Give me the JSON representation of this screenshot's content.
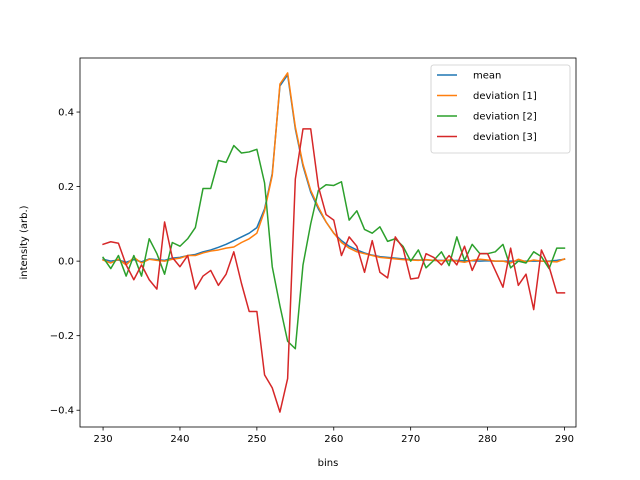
{
  "chart_data": {
    "type": "line",
    "title": "",
    "xlabel": "bins",
    "ylabel": "intensity (arb.)",
    "xlim": [
      227,
      291.5
    ],
    "ylim": [
      -0.445,
      0.545
    ],
    "xticks": [
      230,
      240,
      250,
      260,
      270,
      280,
      290
    ],
    "yticks": [
      -0.4,
      -0.2,
      0.0,
      0.2,
      0.4
    ],
    "xtick_labels": [
      "230",
      "240",
      "250",
      "260",
      "270",
      "280",
      "290"
    ],
    "ytick_labels": [
      "−0.4",
      "−0.2",
      "0.0",
      "0.2",
      "0.4"
    ],
    "grid": false,
    "legend_position": "top-right",
    "x_start": 230,
    "series": [
      {
        "name": "mean",
        "color": "#1f77b4",
        "values": [
          0.005,
          0.0,
          0.003,
          -0.003,
          0.004,
          -0.002,
          0.006,
          0.004,
          0.002,
          0.008,
          0.01,
          0.015,
          0.018,
          0.025,
          0.03,
          0.037,
          0.045,
          0.055,
          0.065,
          0.075,
          0.09,
          0.14,
          0.235,
          0.47,
          0.5,
          0.355,
          0.255,
          0.185,
          0.14,
          0.105,
          0.075,
          0.055,
          0.04,
          0.03,
          0.022,
          0.016,
          0.012,
          0.01,
          0.008,
          0.006,
          0.004,
          0.003,
          0.003,
          0.002,
          0.002,
          0.001,
          0.002,
          0.001,
          0.001,
          0.0,
          0.001,
          0.0,
          0.0,
          0.0,
          0.0,
          0.0,
          0.0,
          0.0,
          0.0,
          0.002,
          0.005
        ]
      },
      {
        "name": "deviation [1]",
        "color": "#ff7f0e",
        "values": [
          0.003,
          -0.005,
          0.005,
          -0.01,
          0.01,
          -0.005,
          0.005,
          0.002,
          0.0,
          0.005,
          0.008,
          0.015,
          0.015,
          0.022,
          0.027,
          0.03,
          0.035,
          0.038,
          0.05,
          0.06,
          0.075,
          0.135,
          0.23,
          0.475,
          0.505,
          0.36,
          0.26,
          0.19,
          0.145,
          0.105,
          0.075,
          0.05,
          0.035,
          0.025,
          0.02,
          0.015,
          0.01,
          0.008,
          0.006,
          0.004,
          0.003,
          0.002,
          0.004,
          0.002,
          0.001,
          0.003,
          0.0,
          -0.003,
          0.002,
          0.005,
          0.003,
          0.0,
          0.0,
          -0.005,
          0.005,
          -0.002,
          0.003,
          0.0,
          -0.001,
          -0.002,
          0.006
        ]
      },
      {
        "name": "deviation [2]",
        "color": "#2ca02c",
        "values": [
          0.01,
          -0.02,
          0.015,
          -0.04,
          0.015,
          -0.04,
          0.06,
          0.02,
          -0.035,
          0.05,
          0.04,
          0.06,
          0.09,
          0.195,
          0.195,
          0.27,
          0.265,
          0.31,
          0.29,
          0.293,
          0.3,
          0.21,
          -0.015,
          -0.12,
          -0.215,
          -0.235,
          -0.01,
          0.1,
          0.19,
          0.205,
          0.203,
          0.213,
          0.11,
          0.135,
          0.085,
          0.075,
          0.092,
          0.053,
          0.06,
          0.04,
          0.0,
          0.03,
          -0.018,
          0.002,
          0.025,
          -0.012,
          0.065,
          0.002,
          0.045,
          0.02,
          0.02,
          0.025,
          0.045,
          -0.018,
          0.0,
          -0.005,
          0.025,
          0.012,
          -0.02,
          0.035,
          0.035
        ]
      },
      {
        "name": "deviation [3]",
        "color": "#d62728",
        "values": [
          0.045,
          0.052,
          0.048,
          -0.01,
          -0.05,
          -0.01,
          -0.05,
          -0.075,
          0.105,
          0.01,
          -0.015,
          0.015,
          -0.075,
          -0.04,
          -0.025,
          -0.065,
          -0.035,
          0.025,
          -0.06,
          -0.135,
          -0.135,
          -0.305,
          -0.34,
          -0.405,
          -0.315,
          0.22,
          0.355,
          0.355,
          0.2,
          0.125,
          0.11,
          0.015,
          0.065,
          0.04,
          -0.03,
          0.055,
          -0.03,
          -0.045,
          0.065,
          0.035,
          -0.048,
          -0.045,
          0.02,
          0.01,
          -0.01,
          0.015,
          -0.01,
          0.04,
          -0.025,
          0.02,
          0.02,
          -0.025,
          -0.07,
          0.035,
          -0.065,
          -0.035,
          -0.13,
          0.03,
          -0.015,
          -0.085,
          -0.085
        ]
      }
    ]
  }
}
